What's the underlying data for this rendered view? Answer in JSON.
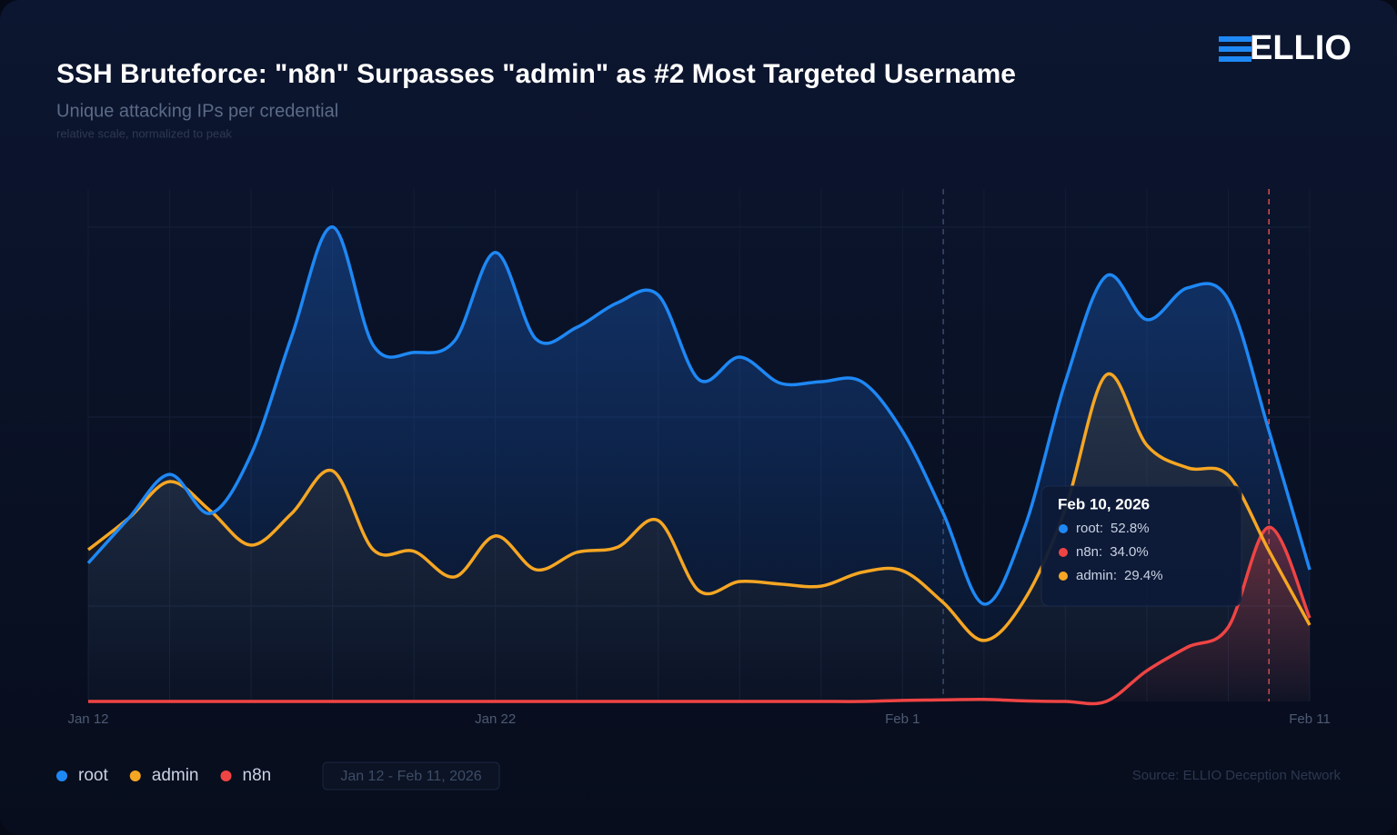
{
  "logo": "ELLIO",
  "chart_data": {
    "type": "line",
    "title": "SSH Bruteforce: \"n8n\" Surpasses \"admin\" as #2 Most Targeted Username",
    "subtitle": "Unique attacking IPs per credential",
    "note": "relative scale, normalized to peak",
    "x": [
      "2026-01-12",
      "2026-01-13",
      "2026-01-14",
      "2026-01-15",
      "2026-01-16",
      "2026-01-17",
      "2026-01-18",
      "2026-01-19",
      "2026-01-20",
      "2026-01-21",
      "2026-01-22",
      "2026-01-23",
      "2026-01-24",
      "2026-01-25",
      "2026-01-26",
      "2026-01-27",
      "2026-01-28",
      "2026-01-29",
      "2026-01-30",
      "2026-01-31",
      "2026-02-01",
      "2026-02-02",
      "2026-02-03",
      "2026-02-04",
      "2026-02-05",
      "2026-02-06",
      "2026-02-07",
      "2026-02-08",
      "2026-02-09",
      "2026-02-10",
      "2026-02-11"
    ],
    "xlim": [
      "2026-01-12",
      "2026-02-11"
    ],
    "xticks": [
      {
        "value": "2026-01-12",
        "label": "Jan 12"
      },
      {
        "value": "2026-01-22",
        "label": "Jan 22"
      },
      {
        "value": "2026-02-01",
        "label": "Feb 1"
      },
      {
        "value": "2026-02-11",
        "label": "Feb 11"
      }
    ],
    "ylim": [
      0,
      100
    ],
    "series": [
      {
        "name": "root",
        "color": "#1e88f5",
        "values": [
          27.0,
          35.8,
          44.3,
          36.7,
          48.2,
          71.3,
          92.6,
          69.5,
          68.1,
          70.4,
          87.6,
          70.7,
          73.0,
          77.8,
          79.3,
          62.8,
          67.2,
          62.1,
          62.4,
          62.4,
          52.7,
          36.7,
          19.0,
          34.0,
          62.4,
          83.0,
          74.5,
          80.7,
          78.4,
          52.8,
          25.7
        ]
      },
      {
        "name": "admin",
        "color": "#f5a623",
        "values": [
          29.6,
          35.8,
          42.9,
          37.2,
          30.5,
          36.7,
          45.0,
          29.6,
          29.3,
          24.3,
          32.3,
          25.7,
          29.1,
          30.1,
          35.3,
          21.6,
          23.4,
          22.9,
          22.5,
          25.2,
          25.5,
          19.3,
          11.9,
          19.9,
          37.6,
          63.7,
          50.0,
          45.6,
          44.1,
          29.4,
          14.9
        ]
      },
      {
        "name": "n8n",
        "color": "#ef4444",
        "values": [
          0,
          0,
          0,
          0,
          0,
          0,
          0,
          0,
          0,
          0,
          0,
          0,
          0,
          0,
          0,
          0,
          0,
          0,
          0,
          0,
          0.2,
          0.3,
          0.4,
          0.1,
          0,
          0,
          6.0,
          10.6,
          14.5,
          34.0,
          16.3
        ]
      }
    ],
    "reference_lines": [
      {
        "x": "2026-02-02",
        "color": "#3b4a68"
      },
      {
        "x": "2026-02-10",
        "color": "#e14b4b"
      }
    ],
    "tooltip": {
      "title": "Feb 10, 2026",
      "items": [
        {
          "series": 0,
          "label": "root:",
          "value_label": "52.8%"
        },
        {
          "series": 2,
          "label": "n8n:",
          "value_label": "34.0%"
        },
        {
          "series": 1,
          "label": "admin:",
          "value_label": "29.4%"
        }
      ]
    },
    "date_range": "Jan 12 - Feb 11, 2026",
    "source": "Source: ELLIO Deception Network"
  }
}
